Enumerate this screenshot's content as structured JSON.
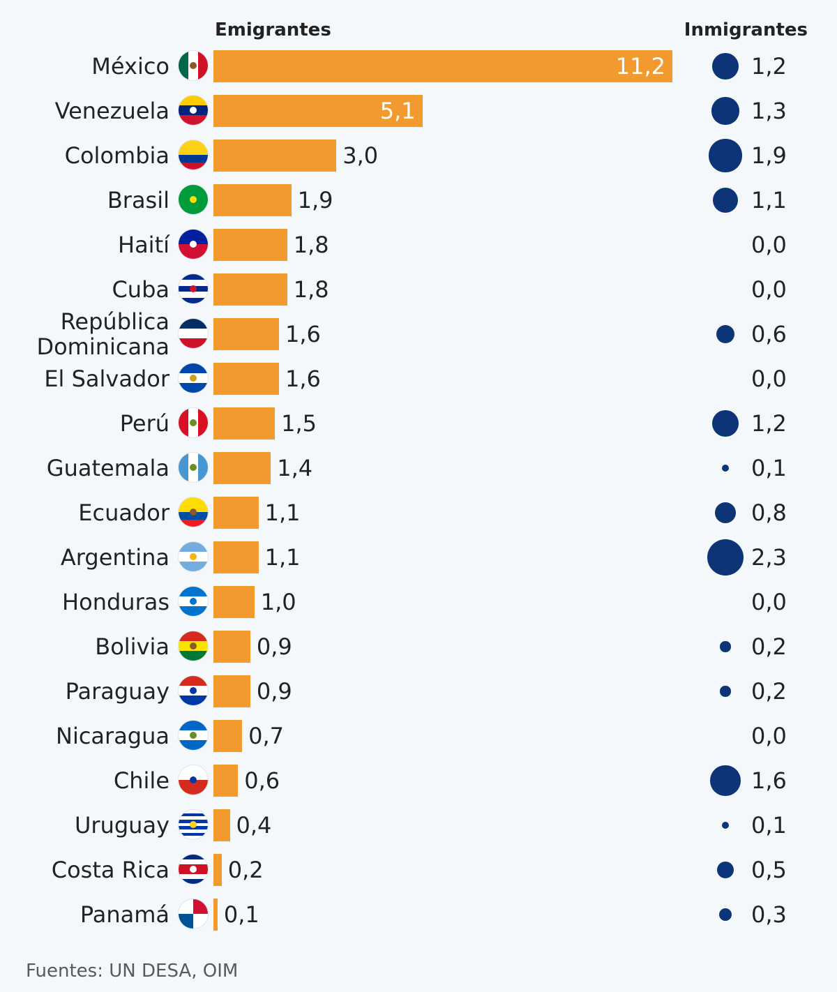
{
  "chart_data": {
    "type": "bar",
    "orientation": "horizontal",
    "series": [
      {
        "name": "Emigrantes",
        "values": [
          11.2,
          5.1,
          3.0,
          1.9,
          1.8,
          1.8,
          1.6,
          1.6,
          1.5,
          1.4,
          1.1,
          1.1,
          1.0,
          0.9,
          0.9,
          0.7,
          0.6,
          0.4,
          0.2,
          0.1
        ]
      },
      {
        "name": "Inmigrantes",
        "values": [
          1.2,
          1.3,
          1.9,
          1.1,
          0.0,
          0.0,
          0.6,
          0.0,
          1.2,
          0.1,
          0.8,
          2.3,
          0.0,
          0.2,
          0.2,
          0.0,
          1.6,
          0.1,
          0.5,
          0.3
        ]
      }
    ],
    "categories": [
      "México",
      "Venezuela",
      "Colombia",
      "Brasil",
      "Haití",
      "Cuba",
      "República Dominicana",
      "El Salvador",
      "Perú",
      "Guatemala",
      "Ecuador",
      "Argentina",
      "Honduras",
      "Bolivia",
      "Paraguay",
      "Nicaragua",
      "Chile",
      "Uruguay",
      "Costa Rica",
      "Panamá"
    ],
    "emigrantes_labels": [
      "11,2",
      "5,1",
      "3,0",
      "1,9",
      "1,8",
      "1,8",
      "1,6",
      "1,6",
      "1,5",
      "1,4",
      "1,1",
      "1,1",
      "1,0",
      "0,9",
      "0,9",
      "0,7",
      "0,6",
      "0,4",
      "0,2",
      "0,1"
    ],
    "inmigrantes_labels": [
      "1,2",
      "1,3",
      "1,9",
      "1,1",
      "0,0",
      "0,0",
      "0,6",
      "0,0",
      "1,2",
      "0,1",
      "0,8",
      "2,3",
      "0,0",
      "0,2",
      "0,2",
      "0,0",
      "1,6",
      "0,1",
      "0,5",
      "0,3"
    ],
    "headers": {
      "emigrantes": "Emigrantes",
      "inmigrantes": "Inmigrantes"
    },
    "colors": {
      "bar": "#f39a2e",
      "dot": "#0d3477",
      "background": "#f5f8fb"
    }
  },
  "flags": [
    {
      "icon": "mexico-flag-icon",
      "dir": "v",
      "colors": [
        "#006847",
        "#ffffff",
        "#ce1126"
      ],
      "emblem": "#8b5a2b"
    },
    {
      "icon": "venezuela-flag-icon",
      "dir": "h",
      "colors": [
        "#ffcc00",
        "#00247d",
        "#cf142b"
      ],
      "emblem": "#ffffff"
    },
    {
      "icon": "colombia-flag-icon",
      "dir": "h",
      "colors": [
        "#fcd116",
        "#fcd116",
        "#003893",
        "#ce1126"
      ]
    },
    {
      "icon": "brazil-flag-icon",
      "dir": "h",
      "colors": [
        "#009c3b"
      ],
      "emblem": "#ffdf00"
    },
    {
      "icon": "haiti-flag-icon",
      "dir": "h",
      "colors": [
        "#00209f",
        "#d21034"
      ],
      "emblem": "#ffffff"
    },
    {
      "icon": "cuba-flag-icon",
      "dir": "h",
      "colors": [
        "#002a8f",
        "#ffffff",
        "#002a8f",
        "#ffffff",
        "#002a8f"
      ],
      "emblem": "#cf142b"
    },
    {
      "icon": "dominican-republic-flag-icon",
      "dir": "h",
      "colors": [
        "#002d62",
        "#ffffff",
        "#ce1126"
      ],
      "emblem": "#ffffff"
    },
    {
      "icon": "el-salvador-flag-icon",
      "dir": "h",
      "colors": [
        "#0047ab",
        "#ffffff",
        "#0047ab"
      ],
      "emblem": "#c9a227"
    },
    {
      "icon": "peru-flag-icon",
      "dir": "v",
      "colors": [
        "#d91023",
        "#ffffff",
        "#d91023"
      ],
      "emblem": "#6b8e23"
    },
    {
      "icon": "guatemala-flag-icon",
      "dir": "v",
      "colors": [
        "#4997d0",
        "#ffffff",
        "#4997d0"
      ],
      "emblem": "#6b8e23"
    },
    {
      "icon": "ecuador-flag-icon",
      "dir": "h",
      "colors": [
        "#ffdd00",
        "#ffdd00",
        "#034ea2",
        "#ed1c24"
      ],
      "emblem": "#8b5a2b"
    },
    {
      "icon": "argentina-flag-icon",
      "dir": "h",
      "colors": [
        "#74acdf",
        "#ffffff",
        "#74acdf"
      ],
      "emblem": "#f6b40e"
    },
    {
      "icon": "honduras-flag-icon",
      "dir": "h",
      "colors": [
        "#0073cf",
        "#ffffff",
        "#0073cf"
      ],
      "emblem": "#0073cf"
    },
    {
      "icon": "bolivia-flag-icon",
      "dir": "h",
      "colors": [
        "#d52b1e",
        "#f9e300",
        "#007934"
      ],
      "emblem": "#8b5a2b"
    },
    {
      "icon": "paraguay-flag-icon",
      "dir": "h",
      "colors": [
        "#d52b1e",
        "#ffffff",
        "#0038a8"
      ],
      "emblem": "#0038a8"
    },
    {
      "icon": "nicaragua-flag-icon",
      "dir": "h",
      "colors": [
        "#0067c6",
        "#ffffff",
        "#0067c6"
      ],
      "emblem": "#6b8e23"
    },
    {
      "icon": "chile-flag-icon",
      "dir": "h",
      "colors": [
        "#ffffff",
        "#d52b1e"
      ],
      "emblem": "#0039a6"
    },
    {
      "icon": "uruguay-flag-icon",
      "dir": "h",
      "colors": [
        "#ffffff",
        "#0038a8",
        "#ffffff",
        "#0038a8",
        "#ffffff",
        "#0038a8",
        "#ffffff",
        "#0038a8",
        "#ffffff"
      ],
      "emblem": "#fcd116"
    },
    {
      "icon": "costa-rica-flag-icon",
      "dir": "h",
      "colors": [
        "#002b7f",
        "#ffffff",
        "#ce1126",
        "#ce1126",
        "#ffffff",
        "#002b7f"
      ],
      "emblem": "#ffffff"
    },
    {
      "icon": "panama-flag-icon",
      "dir": "quad",
      "colors": [
        "#ffffff",
        "#d21034",
        "#005293",
        "#ffffff"
      ]
    }
  ],
  "source": "Fuentes: UN DESA, OIM"
}
